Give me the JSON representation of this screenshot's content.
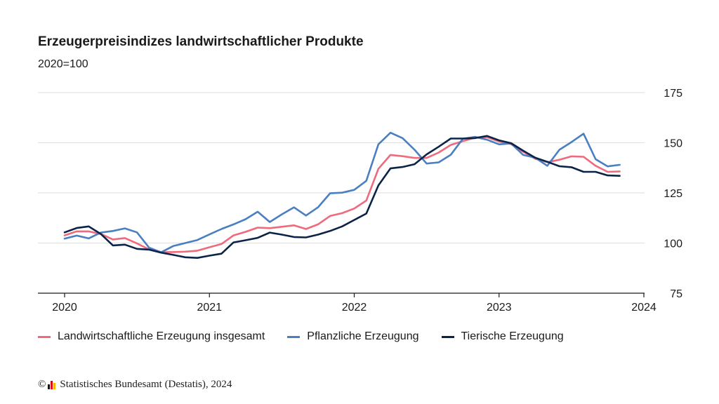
{
  "chart_data": {
    "type": "line",
    "title": "Erzeugerpreisindizes landwirtschaftlicher Produkte",
    "subtitle": "2020=100",
    "xlabel": "",
    "ylabel": "",
    "x_ticks": [
      "2020",
      "2021",
      "2022",
      "2023",
      "2024"
    ],
    "y_ticks": [
      75,
      100,
      125,
      150,
      175
    ],
    "ylim": [
      75,
      175
    ],
    "x_start": "2020-01",
    "y_axis_side": "right",
    "grid": "horizontal",
    "legend_position": "bottom",
    "series": [
      {
        "name": "Landwirtschaftliche Erzeugung insgesamt",
        "color": "#ef6a7d",
        "values": [
          103.8,
          105.8,
          105.8,
          104.5,
          101.8,
          102.5,
          99.8,
          96.8,
          95.5,
          95.5,
          95.7,
          96.2,
          97.9,
          99.5,
          103.8,
          105.6,
          107.7,
          107.4,
          108.1,
          108.8,
          107.0,
          109.3,
          113.5,
          114.9,
          117.2,
          121.2,
          137.0,
          143.9,
          143.3,
          142.4,
          142.4,
          145.1,
          148.9,
          150.8,
          152.6,
          152.8,
          150.6,
          149.3,
          145.5,
          142.0,
          140.3,
          141.5,
          143.2,
          143.0,
          138.5,
          135.5,
          135.7
        ]
      },
      {
        "name": "Pflanzliche Erzeugung",
        "color": "#4a7fc1",
        "values": [
          102.2,
          103.7,
          102.3,
          105.2,
          106.0,
          107.3,
          105.3,
          97.7,
          95.4,
          98.5,
          100.0,
          101.5,
          104.3,
          107.0,
          109.3,
          111.9,
          115.6,
          110.5,
          114.3,
          117.8,
          113.7,
          117.8,
          124.8,
          125.1,
          126.5,
          131.0,
          149.2,
          155.0,
          152.3,
          146.5,
          139.6,
          140.2,
          144.0,
          152.0,
          152.9,
          151.5,
          149.2,
          149.7,
          143.9,
          142.5,
          138.5,
          146.5,
          150.3,
          154.5,
          141.8,
          138.2,
          139.0
        ]
      },
      {
        "name": "Tierische Erzeugung",
        "color": "#0c2348",
        "values": [
          105.3,
          107.5,
          108.3,
          104.5,
          98.8,
          99.2,
          97.1,
          96.7,
          95.2,
          94.1,
          92.9,
          92.6,
          93.7,
          94.7,
          100.3,
          101.4,
          102.6,
          105.2,
          104.2,
          103.0,
          102.8,
          104.2,
          106.0,
          108.3,
          111.5,
          114.7,
          128.7,
          137.2,
          137.9,
          139.3,
          144.2,
          148.0,
          152.1,
          152.1,
          152.3,
          153.4,
          151.2,
          149.8,
          146.0,
          142.5,
          140.5,
          138.3,
          137.8,
          135.5,
          135.5,
          133.7,
          133.5
        ]
      }
    ]
  },
  "footer": {
    "copyright_symbol": "©",
    "logo_colors": [
      "#111111",
      "#e2001a",
      "#f5b800"
    ],
    "source": "Statistisches Bundesamt (Destatis), 2024"
  }
}
